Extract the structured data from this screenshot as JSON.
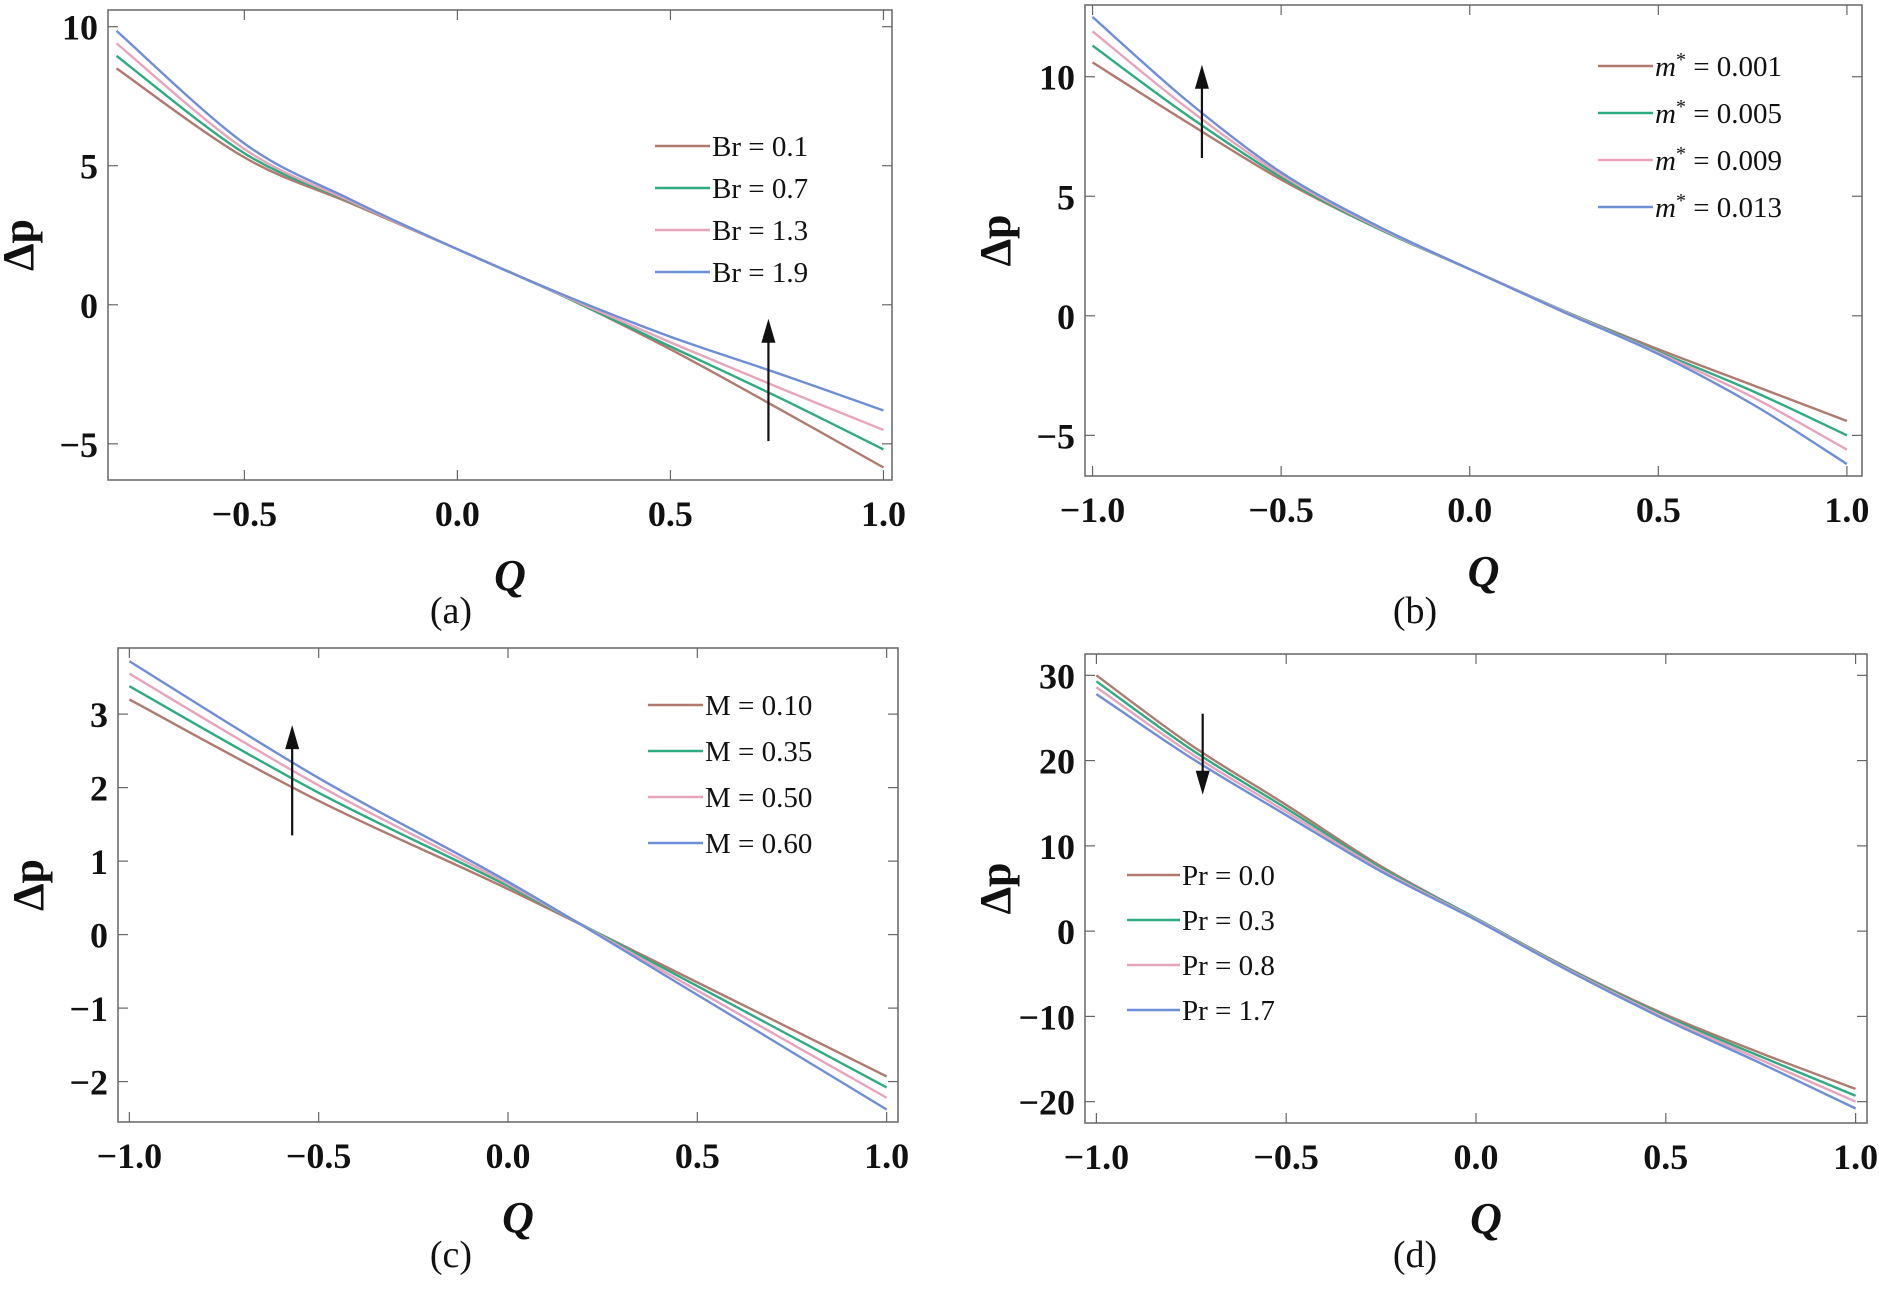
{
  "figure": {
    "panels": [
      "(a)",
      "(b)",
      "(c)",
      "(d)"
    ]
  },
  "chart_data": [
    {
      "type": "line",
      "panel_label": "(a)",
      "xlabel": "Q",
      "ylabel": "Δp",
      "xlim": [
        -0.82,
        1.02
      ],
      "ylim": [
        -6.3,
        10.6
      ],
      "xticks": [
        -0.5,
        0.0,
        0.5,
        1.0
      ],
      "xtick_labels": [
        "−0.5",
        "0.0",
        "0.5",
        "1.0"
      ],
      "yticks": [
        -5,
        0,
        5,
        10
      ],
      "ytick_labels": [
        "−5",
        "0",
        "5",
        "10"
      ],
      "grid": false,
      "legend_position": "right",
      "legend_style": "text",
      "arrow": {
        "x": 0.73,
        "y_from": -4.9,
        "y_to": -0.5
      },
      "series": [
        {
          "name": "Br = 0.1",
          "color": "#b07a6e",
          "x": [
            -0.8,
            -0.5,
            -0.25,
            0.0,
            0.25,
            0.5,
            0.75,
            1.0
          ],
          "y": [
            8.5,
            5.3,
            3.65,
            2.0,
            0.3,
            -1.6,
            -3.7,
            -5.85
          ]
        },
        {
          "name": "Br = 0.7",
          "color": "#2fab82",
          "x": [
            -0.8,
            -0.5,
            -0.25,
            0.0,
            0.25,
            0.5,
            0.75,
            1.0
          ],
          "y": [
            8.95,
            5.45,
            3.7,
            2.0,
            0.3,
            -1.5,
            -3.3,
            -5.2
          ]
        },
        {
          "name": "Br = 1.3",
          "color": "#e8a4bc",
          "x": [
            -0.8,
            -0.5,
            -0.25,
            0.0,
            0.25,
            0.5,
            0.75,
            1.0
          ],
          "y": [
            9.4,
            5.6,
            3.72,
            2.0,
            0.32,
            -1.35,
            -2.95,
            -4.5
          ]
        },
        {
          "name": "Br = 1.9",
          "color": "#6e8fd6",
          "x": [
            -0.8,
            -0.5,
            -0.25,
            0.0,
            0.25,
            0.5,
            0.75,
            1.0
          ],
          "y": [
            9.85,
            5.8,
            3.78,
            2.0,
            0.35,
            -1.15,
            -2.45,
            -3.8
          ]
        }
      ]
    },
    {
      "type": "line",
      "panel_label": "(b)",
      "xlabel": "Q",
      "ylabel": "Δp",
      "xlim": [
        -1.02,
        1.04
      ],
      "ylim": [
        -6.7,
        13
      ],
      "xticks": [
        -1.0,
        -0.5,
        0.0,
        0.5,
        1.0
      ],
      "xtick_labels": [
        "−1.0",
        "−0.5",
        "0.0",
        "0.5",
        "1.0"
      ],
      "yticks": [
        -5,
        0,
        5,
        10
      ],
      "ytick_labels": [
        "−5",
        "0",
        "5",
        "10"
      ],
      "grid": false,
      "legend_position": "top-right",
      "legend_style": "math",
      "arrow": {
        "x": -0.71,
        "y_from": 6.6,
        "y_to": 10.5
      },
      "series": [
        {
          "name": "m* = 0.001",
          "sym": "m*",
          "val": "0.001",
          "color": "#b07a6e",
          "x": [
            -1.0,
            -0.75,
            -0.5,
            -0.25,
            0.0,
            0.25,
            0.5,
            0.75,
            1.0
          ],
          "y": [
            10.6,
            8.1,
            5.7,
            3.7,
            1.95,
            0.2,
            -1.4,
            -2.9,
            -4.4
          ]
        },
        {
          "name": "m* = 0.005",
          "sym": "m*",
          "val": "0.005",
          "color": "#2fab82",
          "x": [
            -1.0,
            -0.75,
            -0.5,
            -0.25,
            0.0,
            0.25,
            0.5,
            0.75,
            1.0
          ],
          "y": [
            11.3,
            8.4,
            5.8,
            3.7,
            1.95,
            0.2,
            -1.5,
            -3.15,
            -5.0
          ]
        },
        {
          "name": "m* = 0.009",
          "sym": "m*",
          "val": "0.009",
          "color": "#e8a4bc",
          "x": [
            -1.0,
            -0.75,
            -0.5,
            -0.25,
            0.0,
            0.25,
            0.5,
            0.75,
            1.0
          ],
          "y": [
            11.9,
            8.7,
            5.9,
            3.75,
            1.95,
            0.18,
            -1.55,
            -3.4,
            -5.6
          ]
        },
        {
          "name": "m* = 0.013",
          "sym": "m*",
          "val": "0.013",
          "color": "#6e8fd6",
          "x": [
            -1.0,
            -0.75,
            -0.5,
            -0.25,
            0.0,
            0.25,
            0.5,
            0.75,
            1.0
          ],
          "y": [
            12.5,
            9.0,
            6.0,
            3.8,
            1.95,
            0.15,
            -1.6,
            -3.7,
            -6.2
          ]
        }
      ]
    },
    {
      "type": "line",
      "panel_label": "(c)",
      "xlabel": "Q",
      "ylabel": "Δp",
      "xlim": [
        -1.03,
        1.03
      ],
      "ylim": [
        -2.55,
        3.9
      ],
      "xticks": [
        -1.0,
        -0.5,
        0.0,
        0.5,
        1.0
      ],
      "xtick_labels": [
        "−1.0",
        "−0.5",
        "0.0",
        "0.5",
        "1.0"
      ],
      "yticks": [
        -2,
        -1,
        0,
        1,
        2,
        3
      ],
      "ytick_labels": [
        "−2",
        "−1",
        "0",
        "1",
        "2",
        "3"
      ],
      "grid": false,
      "legend_position": "top-right",
      "legend_style": "text",
      "arrow": {
        "x": -0.57,
        "y_from": 1.35,
        "y_to": 2.85
      },
      "series": [
        {
          "name": "M = 0.10",
          "color": "#b07a6e",
          "x": [
            -1.0,
            -0.5,
            0.0,
            0.5,
            1.0
          ],
          "y": [
            3.2,
            1.82,
            0.62,
            -0.65,
            -1.93
          ]
        },
        {
          "name": "M = 0.35",
          "color": "#2fab82",
          "x": [
            -1.0,
            -0.5,
            0.0,
            0.5,
            1.0
          ],
          "y": [
            3.38,
            1.93,
            0.66,
            -0.7,
            -2.08
          ]
        },
        {
          "name": "M = 0.50",
          "color": "#e8a4bc",
          "x": [
            -1.0,
            -0.5,
            0.0,
            0.5,
            1.0
          ],
          "y": [
            3.55,
            2.03,
            0.69,
            -0.76,
            -2.22
          ]
        },
        {
          "name": "M = 0.60",
          "color": "#6e8fd6",
          "x": [
            -1.0,
            -0.5,
            0.0,
            0.5,
            1.0
          ],
          "y": [
            3.72,
            2.13,
            0.72,
            -0.82,
            -2.38
          ]
        }
      ]
    },
    {
      "type": "line",
      "panel_label": "(d)",
      "xlabel": "Q",
      "ylabel": "Δp",
      "xlim": [
        -1.03,
        1.03
      ],
      "ylim": [
        -22.5,
        32.5
      ],
      "xticks": [
        -1.0,
        -0.5,
        0.0,
        0.5,
        1.0
      ],
      "xtick_labels": [
        "−1.0",
        "−0.5",
        "0.0",
        "0.5",
        "1.0"
      ],
      "yticks": [
        -20,
        -10,
        0,
        10,
        20,
        30
      ],
      "ytick_labels": [
        "−20",
        "−10",
        "0",
        "10",
        "20",
        "30"
      ],
      "grid": false,
      "legend_position": "left",
      "legend_style": "text",
      "arrow": {
        "x": -0.72,
        "y_from": 25.5,
        "y_to": 16.0
      },
      "series": [
        {
          "name": "Pr = 0.0",
          "color": "#b07a6e",
          "x": [
            -1.0,
            -0.75,
            -0.5,
            -0.25,
            0.0,
            0.25,
            0.5,
            0.75,
            1.0
          ],
          "y": [
            30.0,
            21.8,
            14.8,
            7.6,
            1.5,
            -4.5,
            -9.8,
            -14.3,
            -18.5
          ]
        },
        {
          "name": "Pr = 0.3",
          "color": "#2fab82",
          "x": [
            -1.0,
            -0.75,
            -0.5,
            -0.25,
            0.0,
            0.25,
            0.5,
            0.75,
            1.0
          ],
          "y": [
            29.3,
            21.3,
            14.4,
            7.4,
            1.5,
            -4.6,
            -10.0,
            -14.7,
            -19.3
          ]
        },
        {
          "name": "Pr = 0.8",
          "color": "#e8a4bc",
          "x": [
            -1.0,
            -0.75,
            -0.5,
            -0.25,
            0.0,
            0.25,
            0.5,
            0.75,
            1.0
          ],
          "y": [
            28.6,
            20.8,
            14.0,
            7.2,
            1.4,
            -4.7,
            -10.2,
            -15.1,
            -20.0
          ]
        },
        {
          "name": "Pr = 1.7",
          "color": "#6e8fd6",
          "x": [
            -1.0,
            -0.75,
            -0.5,
            -0.25,
            0.0,
            0.25,
            0.5,
            0.75,
            1.0
          ],
          "y": [
            27.8,
            20.3,
            13.6,
            7.0,
            1.3,
            -4.8,
            -10.4,
            -15.5,
            -20.8
          ]
        }
      ]
    }
  ]
}
